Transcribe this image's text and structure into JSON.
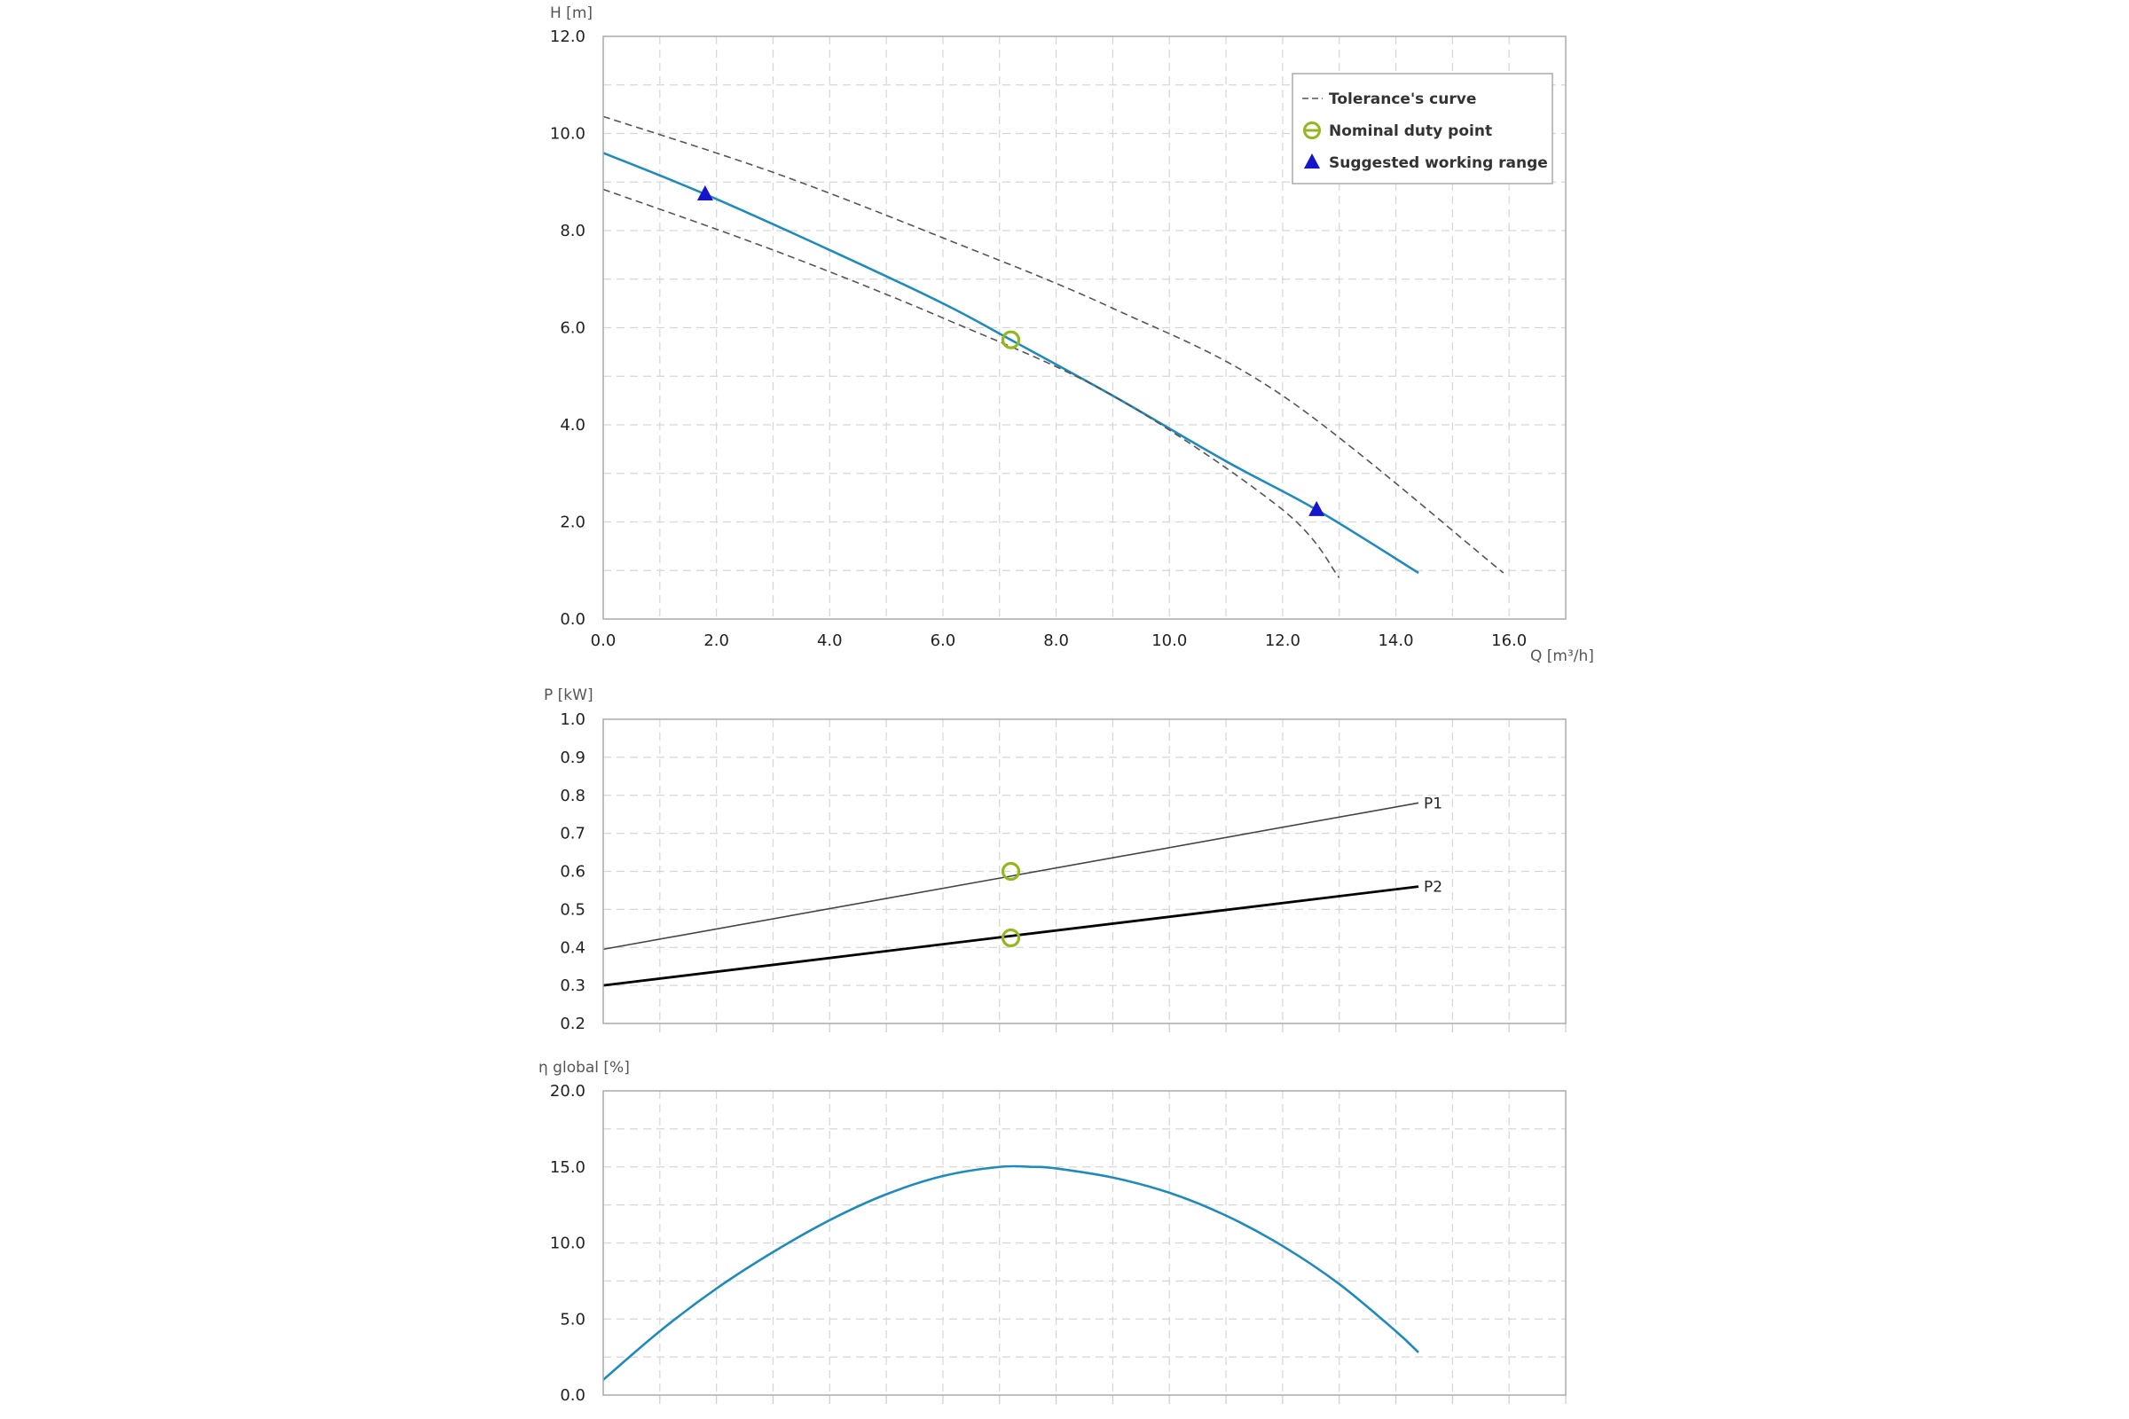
{
  "colors": {
    "curve": "#1f8bbd",
    "tolerance": "#555555",
    "duty_point": "#93b81e",
    "working_range": "#1515cc",
    "p1": "#444444",
    "p2": "#000000",
    "grid": "#d6d6d6",
    "frame": "#aaaaaa"
  },
  "legend": {
    "tolerance": "Tolerance's curve",
    "duty": "Nominal duty point",
    "range": "Suggested working range"
  },
  "chart_data": [
    {
      "type": "line",
      "ylabel": "H [m]",
      "xlabel": "Q [m³/h]",
      "xlim": [
        0,
        17
      ],
      "ylim": [
        0,
        12
      ],
      "x_ticks": [
        "0.0",
        "2.0",
        "4.0",
        "6.0",
        "8.0",
        "10.0",
        "12.0",
        "14.0",
        "16.0"
      ],
      "y_ticks": [
        "0.0",
        "2.0",
        "4.0",
        "6.0",
        "8.0",
        "10.0",
        "12.0"
      ],
      "grid": true,
      "legend_position": "top-right",
      "series": [
        {
          "x": [
            0,
            1.8,
            4,
            6,
            7.2,
            9,
            11,
            12.6,
            14.4
          ],
          "y": [
            9.6,
            8.75,
            7.6,
            6.5,
            5.75,
            4.6,
            3.25,
            2.25,
            0.95
          ]
        },
        {
          "style": "dashed",
          "x": [
            0,
            3,
            6,
            9,
            12,
            15.9
          ],
          "y": [
            10.35,
            9.2,
            7.85,
            6.4,
            4.6,
            0.95
          ]
        },
        {
          "style": "dashed",
          "x": [
            0,
            3,
            6,
            9,
            12,
            13
          ],
          "y": [
            8.85,
            7.6,
            6.2,
            4.6,
            2.25,
            0.85
          ]
        }
      ],
      "duty_point": {
        "x": 7.2,
        "y": 5.75
      },
      "working_range_points": [
        {
          "x": 1.8,
          "y": 8.75
        },
        {
          "x": 12.6,
          "y": 2.25
        }
      ]
    },
    {
      "type": "line",
      "ylabel": "P [kW]",
      "xlim": [
        0,
        17
      ],
      "ylim": [
        0.2,
        1.0
      ],
      "y_ticks": [
        "0.2",
        "0.3",
        "0.4",
        "0.5",
        "0.6",
        "0.7",
        "0.8",
        "0.9",
        "1.0"
      ],
      "grid": true,
      "series": [
        {
          "name": "P1",
          "x": [
            0,
            14.4
          ],
          "y": [
            0.395,
            0.78
          ]
        },
        {
          "name": "P2",
          "x": [
            0,
            14.4
          ],
          "y": [
            0.3,
            0.56
          ]
        }
      ],
      "duty_points": [
        {
          "x": 7.2,
          "y": 0.6
        },
        {
          "x": 7.2,
          "y": 0.425
        }
      ]
    },
    {
      "type": "line",
      "ylabel": "η global [%]",
      "xlim": [
        0,
        17
      ],
      "ylim": [
        0,
        20
      ],
      "y_ticks": [
        "0.0",
        "5.0",
        "10.0",
        "15.0",
        "20.0"
      ],
      "grid": true,
      "series": [
        {
          "x": [
            0,
            1,
            2,
            3,
            4,
            5,
            6,
            7,
            7.6,
            8,
            9,
            10,
            11,
            12,
            13,
            14,
            14.4
          ],
          "y": [
            1.0,
            4.2,
            7.0,
            9.4,
            11.5,
            13.2,
            14.4,
            15.0,
            15.0,
            14.9,
            14.3,
            13.3,
            11.8,
            9.8,
            7.3,
            4.2,
            2.8
          ]
        }
      ]
    }
  ]
}
